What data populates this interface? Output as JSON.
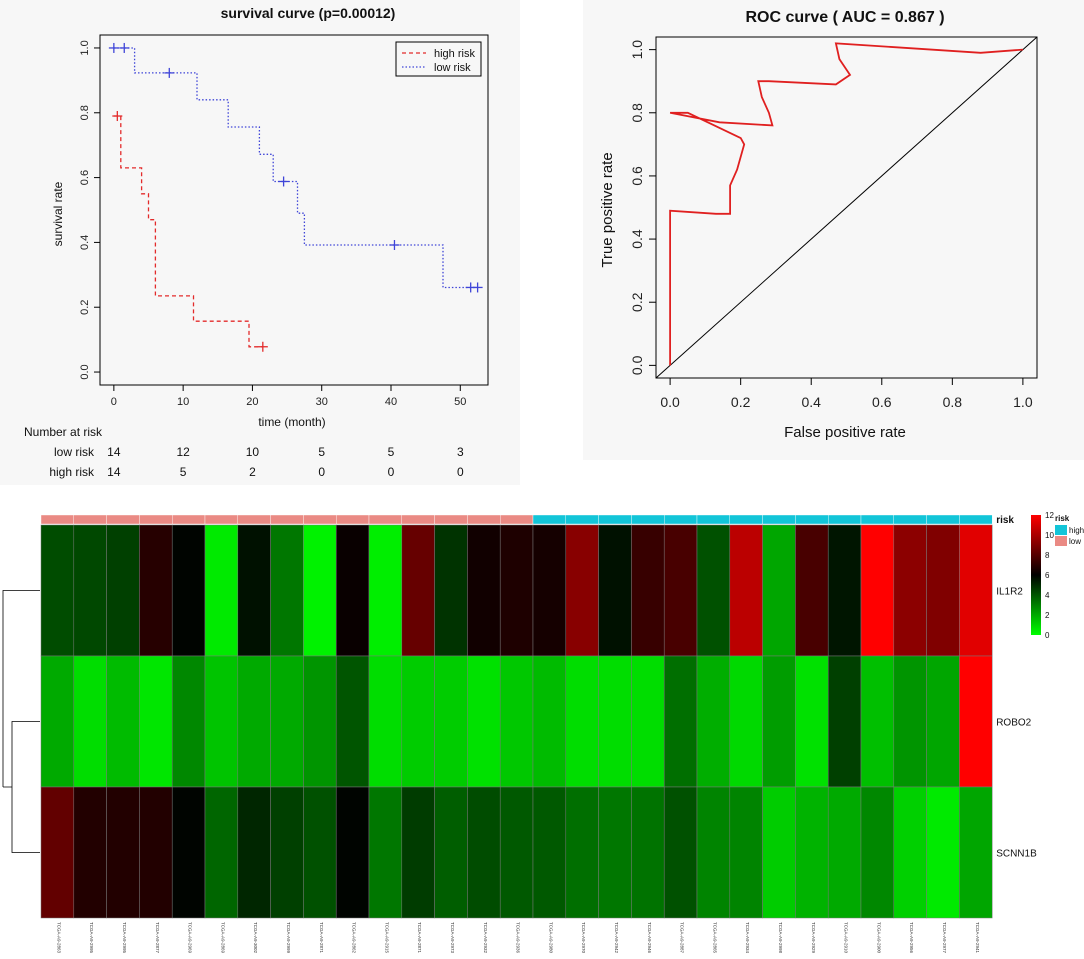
{
  "colors": {
    "high_risk": "#e32b2b",
    "low_risk": "#3f45d8",
    "roc_line": "#e02020",
    "heat_low": "#00ff00",
    "heat_mid": "#000000",
    "heat_high": "#ff0000",
    "risk_low_bar": "#ea8a84",
    "risk_high_bar": "#12c5d8"
  },
  "chart_data": [
    {
      "type": "line",
      "subtype": "kaplan-meier",
      "title": "survival curve (p=0.00012)",
      "xlabel": "time (month)",
      "ylabel": "survival rate",
      "xlim": [
        -2,
        54
      ],
      "ylim": [
        -0.04,
        1.04
      ],
      "x_ticks": [
        0,
        10,
        20,
        30,
        40,
        50
      ],
      "y_ticks": [
        0.0,
        0.2,
        0.4,
        0.6,
        0.8,
        1.0
      ],
      "x_tick_labels": [
        "0",
        "10",
        "20",
        "30",
        "40",
        "50"
      ],
      "y_tick_labels": [
        "0.0",
        "0.2",
        "0.4",
        "0.6",
        "0.8",
        "1.0"
      ],
      "legend": {
        "position": "top-right",
        "entries": [
          "high risk",
          "low risk"
        ]
      },
      "series": [
        {
          "name": "high risk",
          "style": "dashed",
          "steps": [
            [
              0,
              0.79
            ],
            [
              1,
              0.79
            ],
            [
              1,
              0.63
            ],
            [
              4,
              0.63
            ],
            [
              4,
              0.55
            ],
            [
              5,
              0.55
            ],
            [
              5,
              0.47
            ],
            [
              6,
              0.47
            ],
            [
              6,
              0.235
            ],
            [
              11.5,
              0.235
            ],
            [
              11.5,
              0.157
            ],
            [
              19.5,
              0.157
            ],
            [
              19.5,
              0.078
            ],
            [
              21.5,
              0.078
            ]
          ],
          "censored": [
            [
              0.5,
              0.79
            ],
            [
              21.5,
              0.078
            ]
          ]
        },
        {
          "name": "low risk",
          "style": "dotted",
          "steps": [
            [
              0,
              1.0
            ],
            [
              3,
              1.0
            ],
            [
              3,
              0.923
            ],
            [
              12,
              0.923
            ],
            [
              12,
              0.84
            ],
            [
              16.5,
              0.84
            ],
            [
              16.5,
              0.756
            ],
            [
              21,
              0.756
            ],
            [
              21,
              0.672
            ],
            [
              23,
              0.672
            ],
            [
              23,
              0.588
            ],
            [
              26.5,
              0.588
            ],
            [
              26.5,
              0.49
            ],
            [
              27.5,
              0.49
            ],
            [
              27.5,
              0.392
            ],
            [
              47.5,
              0.392
            ],
            [
              47.5,
              0.261
            ],
            [
              52.5,
              0.261
            ]
          ],
          "censored": [
            [
              0,
              1.0
            ],
            [
              1.5,
              1.0
            ],
            [
              8,
              0.923
            ],
            [
              24.5,
              0.588
            ],
            [
              40.5,
              0.392
            ],
            [
              51.5,
              0.261
            ],
            [
              52.5,
              0.261
            ]
          ]
        }
      ],
      "risk_table": {
        "title": "Number at risk",
        "times": [
          0,
          10,
          20,
          30,
          40,
          50
        ],
        "rows": [
          {
            "label": "low risk",
            "values": [
              "14",
              "12",
              "10",
              "5",
              "5",
              "3"
            ]
          },
          {
            "label": "high risk",
            "values": [
              "14",
              "5",
              "2",
              "0",
              "0",
              "0"
            ]
          }
        ]
      }
    },
    {
      "type": "line",
      "subtype": "roc",
      "title": "ROC curve ( AUC =  0.867 )",
      "xlabel": "False positive rate",
      "ylabel": "True positive rate",
      "xlim": [
        -0.04,
        1.04
      ],
      "ylim": [
        -0.04,
        1.04
      ],
      "x_ticks": [
        0.0,
        0.2,
        0.4,
        0.6,
        0.8,
        1.0
      ],
      "y_ticks": [
        0.0,
        0.2,
        0.4,
        0.6,
        0.8,
        1.0
      ],
      "x_tick_labels": [
        "0.0",
        "0.2",
        "0.4",
        "0.6",
        "0.8",
        "1.0"
      ],
      "y_tick_labels": [
        "0.0",
        "0.2",
        "0.4",
        "0.6",
        "0.8",
        "1.0"
      ],
      "points": [
        [
          0.0,
          0.0
        ],
        [
          0.0,
          0.49
        ],
        [
          0.13,
          0.48
        ],
        [
          0.17,
          0.48
        ],
        [
          0.17,
          0.57
        ],
        [
          0.19,
          0.62
        ],
        [
          0.21,
          0.7
        ],
        [
          0.2,
          0.72
        ],
        [
          0.05,
          0.8
        ],
        [
          0.0,
          0.8
        ],
        [
          0.14,
          0.77
        ],
        [
          0.29,
          0.76
        ],
        [
          0.28,
          0.8
        ],
        [
          0.26,
          0.85
        ],
        [
          0.25,
          0.9
        ],
        [
          0.28,
          0.9
        ],
        [
          0.47,
          0.89
        ],
        [
          0.51,
          0.92
        ],
        [
          0.48,
          0.97
        ],
        [
          0.47,
          1.02
        ],
        [
          0.88,
          0.99
        ],
        [
          1.0,
          1.0
        ]
      ],
      "diagonal": [
        [
          -0.04,
          -0.04
        ],
        [
          1.04,
          1.04
        ]
      ]
    },
    {
      "type": "heatmap",
      "title": "",
      "rows": [
        "IL1R2",
        "ROBO2",
        "SCNN1B"
      ],
      "columns": [
        "TCGA-A9-2863",
        "TCGA-A9-2995",
        "TCGA-A9-2995",
        "TCGA-A9-2877",
        "TCGA-A9-2969",
        "TCGA-A9-2869",
        "TCGA-A9-3002",
        "TCGA-A9-2999",
        "TCGA-A9-2871",
        "TCGA-A9-2862",
        "TCGA-A9-2915",
        "TCGA-A9-2871",
        "TCGA-A9-2973",
        "TCGA-A9-2932",
        "TCGA-A9-2936",
        "TCGA-A9-2980",
        "TCGA-A9-2970",
        "TCGA-A9-2942",
        "TCGA-A9-2946",
        "TCGA-A9-2887",
        "TCGA-A9-2865",
        "TCGA-A9-2934",
        "TCGA-A9-2998",
        "TCGA-A9-2929",
        "TCGA-A9-2910",
        "TCGA-A9-2900",
        "TCGA-A9-2956",
        "TCGA-A9-2977",
        "TCGA-A9-2941"
      ],
      "risk": [
        "low",
        "low",
        "low",
        "low",
        "low",
        "low",
        "low",
        "low",
        "low",
        "low",
        "low",
        "low",
        "low",
        "low",
        "low",
        "high",
        "high",
        "high",
        "high",
        "high",
        "high",
        "high",
        "high",
        "high",
        "high",
        "high",
        "high",
        "high",
        "high"
      ],
      "risk_label": "risk",
      "legend": {
        "title": "risk",
        "entries": [
          "high",
          "low"
        ],
        "scale_ticks": [
          0,
          2,
          4,
          6,
          8,
          10,
          12
        ]
      },
      "range": [
        0,
        12
      ],
      "values": [
        [
          4.2,
          4.3,
          4.5,
          6.9,
          5.9,
          0.5,
          5.6,
          3.2,
          0.3,
          6.2,
          0.4,
          8.4,
          4.8,
          6.4,
          6.7,
          6.5,
          9.2,
          5.6,
          7.3,
          7.7,
          4.1,
          10.4,
          2.1,
          7.7,
          5.5,
          12.0,
          9.3,
          9.0,
          11.3
        ],
        [
          2.0,
          0.8,
          1.6,
          0.6,
          2.8,
          1.4,
          2.0,
          2.0,
          2.5,
          4.0,
          0.8,
          1.2,
          1.2,
          0.7,
          1.3,
          1.6,
          0.8,
          0.8,
          0.8,
          3.4,
          1.9,
          0.9,
          2.3,
          0.7,
          4.5,
          1.5,
          2.5,
          2.1,
          12.0
        ],
        [
          8.3,
          6.8,
          6.8,
          6.8,
          5.9,
          3.6,
          5.1,
          4.5,
          4.1,
          5.9,
          3.2,
          4.6,
          3.8,
          4.2,
          3.9,
          3.9,
          3.4,
          3.2,
          3.3,
          4.1,
          2.9,
          2.9,
          1.2,
          1.8,
          2.0,
          2.8,
          1.1,
          0.5,
          2.1
        ]
      ]
    }
  ]
}
